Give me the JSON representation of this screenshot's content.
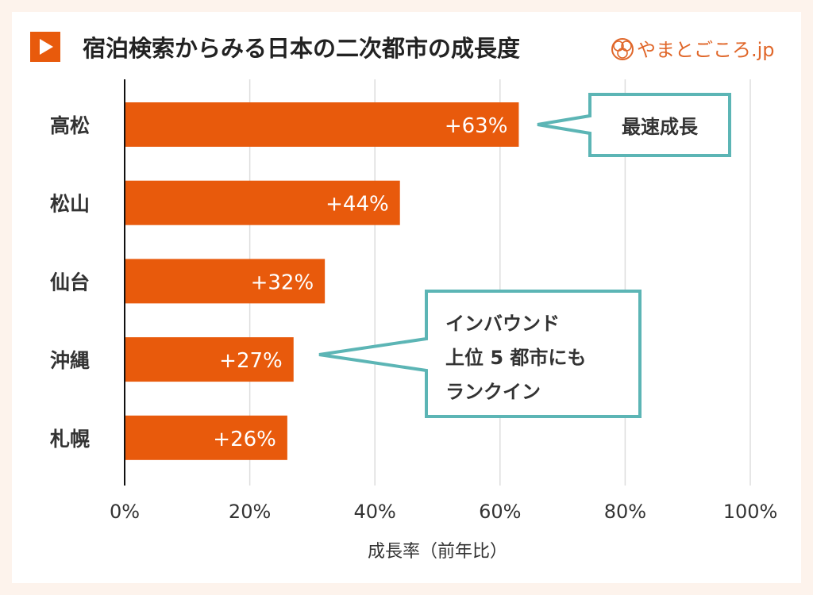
{
  "header": {
    "title": "宿泊検索からみる日本の二次都市の成長度",
    "brand": "やまとごころ.jp",
    "play_icon": "play-icon",
    "brand_icon": "logo-icon"
  },
  "colors": {
    "bar": "#e85a0c",
    "callout": "#5cb5b5",
    "text": "#333333",
    "grid": "#dddddd"
  },
  "chart_data": {
    "type": "bar",
    "orientation": "horizontal",
    "title": "宿泊検索からみる日本の二次都市の成長度",
    "categories": [
      "高松",
      "松山",
      "仙台",
      "沖縄",
      "札幌"
    ],
    "values": [
      63,
      44,
      32,
      27,
      26
    ],
    "data_labels": [
      "+63%",
      "+44%",
      "+32%",
      "+27%",
      "+26%"
    ],
    "xlabel": "成長率（前年比）",
    "ylabel": "",
    "xlim": [
      0,
      100
    ],
    "xticks": [
      0,
      20,
      40,
      60,
      80,
      100
    ],
    "xtick_labels": [
      "0%",
      "20%",
      "40%",
      "60%",
      "80%",
      "100%"
    ],
    "grid": true,
    "annotations": [
      {
        "text": "最速成長",
        "target": "高松"
      },
      {
        "lines": [
          "インバウンド",
          "上位 5 都市にも",
          "ランクイン"
        ],
        "target": "沖縄"
      }
    ]
  }
}
